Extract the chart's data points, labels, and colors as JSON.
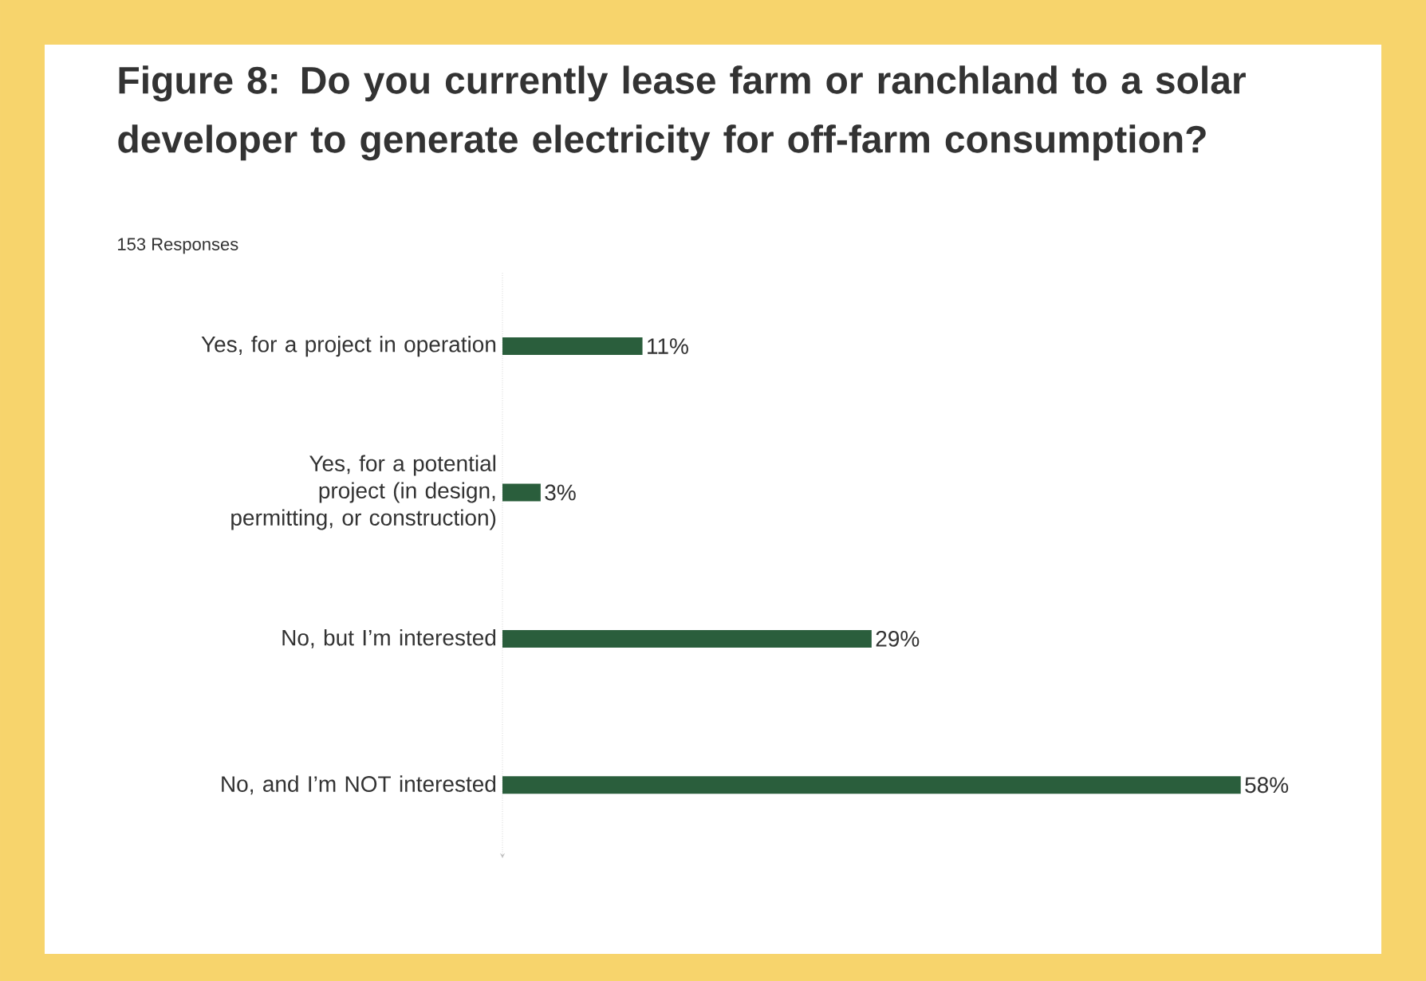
{
  "chart_data": {
    "type": "bar",
    "orientation": "horizontal",
    "title": "Figure 8: Do you currently lease farm or ranchland to a solar developer to generate electricity for off-farm consumption?",
    "subtitle": "153 Responses",
    "categories": [
      "Yes, for a project in operation",
      "Yes, for a potential project (in design, permitting, or construction)",
      "No, but I’m interested",
      "No, and I’m NOT interested"
    ],
    "values": [
      11,
      3,
      29,
      58
    ],
    "value_labels": [
      "11%",
      "3%",
      "29%",
      "58%"
    ],
    "color": "#2a5e3c"
  }
}
